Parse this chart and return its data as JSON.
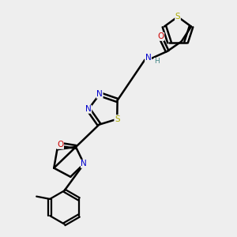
{
  "bg_color": "#eeeeee",
  "atom_colors": {
    "C": "#000000",
    "N": "#0000cc",
    "O": "#cc0000",
    "S": "#aaaa00",
    "H": "#448888"
  },
  "bond_color": "#000000",
  "bond_width": 1.8,
  "dbo": 0.12,
  "figsize": [
    3.0,
    3.0
  ],
  "dpi": 100
}
